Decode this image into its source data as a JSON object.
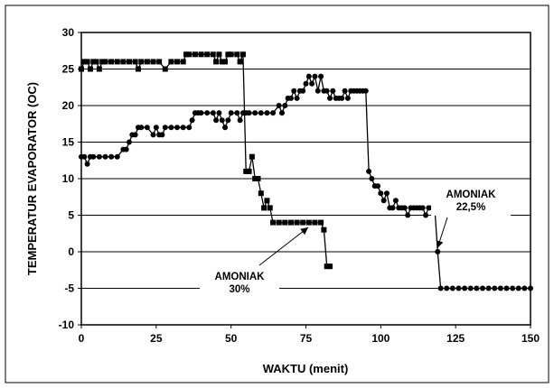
{
  "chart_data": {
    "type": "line",
    "xlabel": "WAKTU (menit)",
    "ylabel": "TEMPERATUR EVAPORATOR (OC)",
    "xlim": [
      0,
      150
    ],
    "ylim": [
      -10,
      30
    ],
    "xticks": [
      0,
      25,
      50,
      75,
      100,
      125,
      150
    ],
    "yticks": [
      -10,
      -5,
      0,
      5,
      10,
      15,
      20,
      25,
      30
    ],
    "grid": "horizontal",
    "legend": "none",
    "annotations": [
      {
        "text_lines": [
          "AMONIAK",
          "30%"
        ],
        "points_to": [
          80,
          4
        ]
      },
      {
        "text_lines": [
          "AMONIAK",
          "22,5%"
        ],
        "points_to": [
          119,
          1
        ]
      }
    ],
    "series": [
      {
        "marker": "square",
        "x": [
          0,
          1,
          2,
          3,
          4,
          5,
          6,
          7,
          8,
          10,
          12,
          14,
          16,
          18,
          19,
          20,
          22,
          24,
          26,
          28,
          30,
          32,
          34,
          35,
          36,
          38,
          40,
          42,
          44,
          45,
          46,
          47,
          48,
          49,
          50,
          52,
          53,
          54,
          55,
          56,
          57,
          58,
          59,
          60,
          61,
          62,
          63,
          64,
          66,
          68,
          70,
          72,
          74,
          76,
          78,
          80,
          81,
          82,
          83
        ],
        "y": [
          25,
          26,
          26,
          25,
          26,
          26,
          25,
          26,
          26,
          26,
          26,
          26,
          26,
          26,
          25,
          26,
          26,
          26,
          26,
          25,
          26,
          26,
          26,
          27,
          27,
          27,
          27,
          27,
          27,
          26,
          27,
          26,
          26,
          27,
          27,
          27,
          26,
          27,
          11,
          11,
          13,
          10,
          10,
          8,
          6,
          7,
          6,
          4,
          4,
          4,
          4,
          4,
          4,
          4,
          4,
          4,
          3,
          -2,
          -2
        ]
      },
      {
        "marker": "circle",
        "x": [
          0,
          1,
          2,
          3,
          4,
          6,
          8,
          10,
          12,
          14,
          15,
          16,
          17,
          18,
          19,
          20,
          22,
          24,
          25,
          26,
          27,
          28,
          30,
          32,
          34,
          36,
          37,
          38,
          39,
          40,
          42,
          44,
          45,
          46,
          47,
          48,
          49,
          50,
          52,
          53,
          54,
          55,
          56,
          58,
          60,
          62,
          64,
          66,
          67,
          68,
          69,
          70,
          71,
          72,
          73,
          74,
          75,
          76,
          77,
          78,
          79,
          80,
          81,
          82,
          83,
          84,
          85,
          86,
          87,
          88,
          89,
          90,
          91,
          92,
          93,
          94,
          95,
          96,
          97,
          98,
          99,
          100,
          101,
          102,
          103,
          104,
          105,
          106,
          107,
          108,
          109,
          110,
          111,
          112,
          113,
          114,
          115,
          116,
          117,
          118,
          119,
          120,
          122,
          124,
          126,
          128,
          130,
          132,
          134,
          136,
          138,
          140,
          142,
          144,
          146,
          148,
          150
        ],
        "y": [
          13,
          13,
          12,
          13,
          13,
          13,
          13,
          13,
          13,
          14,
          14,
          15,
          16,
          16,
          17,
          17,
          17,
          16,
          17,
          16,
          16,
          17,
          17,
          17,
          17,
          17,
          18,
          19,
          19,
          19,
          19,
          19,
          18,
          19,
          18,
          17,
          18,
          19,
          19,
          18,
          19,
          19,
          19,
          19,
          19,
          19,
          19,
          20,
          19,
          20,
          21,
          21,
          22,
          21,
          22,
          22,
          23,
          24,
          23,
          24,
          22,
          24,
          22,
          22,
          21,
          22,
          21,
          21,
          21,
          22,
          21,
          22,
          22,
          22,
          22,
          22,
          22,
          11,
          10,
          9,
          9,
          8,
          7,
          8,
          6,
          6,
          7,
          6,
          6,
          6,
          5,
          6,
          6,
          6,
          6,
          6,
          5,
          6,
          6,
          6,
          0,
          -5,
          -5,
          -5,
          -5,
          -5,
          -5,
          -5,
          -5,
          -5,
          -5,
          -5,
          -5,
          -5,
          -5,
          -5,
          -5
        ]
      }
    ]
  }
}
